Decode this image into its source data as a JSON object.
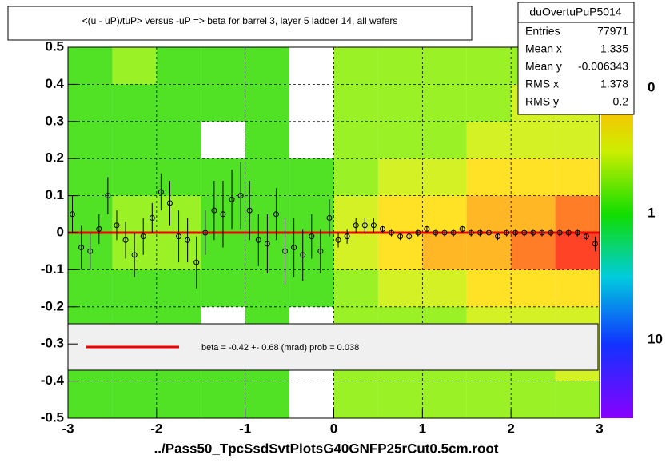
{
  "chart_data": {
    "type": "heatmap",
    "title": "<(u - uP)/tuP> versus  -uP => beta for barrel 3, layer 5 ladder 14, all wafers",
    "x_label": "../Pass50_TpcSsdSvtPlotsG40GNFP25rCut0.5cm.root",
    "xlim": [
      -3,
      3
    ],
    "ylim": [
      -0.5,
      0.5
    ],
    "xticks": [
      -3,
      -2,
      -1,
      0,
      1,
      2,
      3
    ],
    "yticks": [
      -0.5,
      -0.4,
      -0.3,
      -0.2,
      -0.1,
      0,
      0.1,
      0.2,
      0.3,
      0.4,
      0.5
    ],
    "grid": true,
    "xbins": [
      -3,
      -2.5,
      -2,
      -1.5,
      -1,
      -0.5,
      0,
      0.5,
      1,
      1.5,
      2,
      2.5,
      3
    ],
    "ybins": [
      -0.5,
      -0.4,
      -0.3,
      -0.2,
      -0.1,
      0,
      0.1,
      0.2,
      0.3,
      0.4,
      0.5
    ],
    "z": [
      [
        1,
        1,
        1,
        1,
        1,
        0,
        2,
        2,
        2,
        2,
        2,
        2
      ],
      [
        1,
        1,
        1,
        1,
        1,
        0,
        2,
        2,
        2,
        2,
        2,
        3
      ],
      [
        1,
        1,
        1,
        0,
        1,
        0,
        2,
        2,
        2,
        3,
        3,
        3
      ],
      [
        1,
        1,
        1,
        1,
        1,
        1,
        2,
        3,
        3,
        4,
        5,
        5
      ],
      [
        1,
        2,
        2,
        1,
        1,
        1,
        3,
        4,
        6,
        8,
        10,
        14
      ],
      [
        1,
        2,
        2,
        1,
        1,
        1,
        3,
        4,
        5,
        7,
        9,
        12
      ],
      [
        1,
        1,
        1,
        1,
        1,
        1,
        2,
        3,
        3,
        4,
        4,
        5
      ],
      [
        1,
        1,
        1,
        0,
        1,
        0,
        2,
        2,
        2,
        3,
        3,
        3
      ],
      [
        1,
        1,
        1,
        1,
        1,
        0,
        2,
        2,
        2,
        2,
        3,
        3
      ],
      [
        1,
        2,
        1,
        1,
        1,
        0,
        2,
        2,
        2,
        2,
        2,
        2
      ]
    ],
    "colorbar_labels": [
      "0",
      "1",
      "10"
    ],
    "profile": {
      "color": "#000000",
      "x": [
        -2.95,
        -2.85,
        -2.75,
        -2.65,
        -2.55,
        -2.45,
        -2.35,
        -2.25,
        -2.15,
        -2.05,
        -1.95,
        -1.85,
        -1.75,
        -1.65,
        -1.55,
        -1.45,
        -1.35,
        -1.25,
        -1.15,
        -1.05,
        -0.95,
        -0.85,
        -0.75,
        -0.65,
        -0.55,
        -0.45,
        -0.35,
        -0.25,
        -0.15,
        -0.05,
        0.05,
        0.15,
        0.25,
        0.35,
        0.45,
        0.55,
        0.65,
        0.75,
        0.85,
        0.95,
        1.05,
        1.15,
        1.25,
        1.35,
        1.45,
        1.55,
        1.65,
        1.75,
        1.85,
        1.95,
        2.05,
        2.15,
        2.25,
        2.35,
        2.45,
        2.55,
        2.65,
        2.75,
        2.85,
        2.95
      ],
      "values": [
        0.05,
        -0.04,
        -0.05,
        0.01,
        0.1,
        0.02,
        -0.02,
        -0.06,
        -0.01,
        0.04,
        0.11,
        0.08,
        -0.01,
        -0.02,
        -0.08,
        0.0,
        0.06,
        0.05,
        0.09,
        0.1,
        0.06,
        -0.02,
        -0.03,
        0.05,
        -0.05,
        -0.04,
        -0.06,
        -0.01,
        -0.05,
        0.04,
        -0.02,
        -0.01,
        0.02,
        0.02,
        0.02,
        0.01,
        0.0,
        -0.01,
        -0.01,
        0.0,
        0.01,
        0.0,
        0.0,
        0.0,
        0.01,
        0.0,
        0.0,
        0.0,
        -0.01,
        0.0,
        0.0,
        0.0,
        0.0,
        0.0,
        0.0,
        0.0,
        0.0,
        0.0,
        -0.01,
        -0.03
      ],
      "errors": [
        0.05,
        0.06,
        0.05,
        0.04,
        0.05,
        0.04,
        0.05,
        0.06,
        0.05,
        0.04,
        0.05,
        0.06,
        0.07,
        0.06,
        0.07,
        0.06,
        0.08,
        0.09,
        0.08,
        0.09,
        0.08,
        0.07,
        0.08,
        0.07,
        0.09,
        0.08,
        0.07,
        0.06,
        0.06,
        0.05,
        0.02,
        0.02,
        0.02,
        0.02,
        0.02,
        0.01,
        0.01,
        0.01,
        0.01,
        0.01,
        0.01,
        0.01,
        0.01,
        0.01,
        0.01,
        0.01,
        0.01,
        0.01,
        0.01,
        0.01,
        0.01,
        0.01,
        0.01,
        0.01,
        0.01,
        0.01,
        0.01,
        0.01,
        0.01,
        0.02
      ]
    },
    "fit": {
      "color": "#ee0000",
      "x": [
        -3,
        3
      ],
      "values": [
        0,
        0
      ]
    },
    "legend_text": "beta =   -0.42 +-  0.68 (mrad) prob = 0.038",
    "stats": {
      "name": "duOvertuPuP5014",
      "rows": [
        [
          "Entries",
          "77971"
        ],
        [
          "Mean x",
          "1.335"
        ],
        [
          "Mean y",
          "-0.006343"
        ],
        [
          "RMS x",
          "1.378"
        ],
        [
          "RMS y",
          "0.2"
        ]
      ]
    }
  }
}
